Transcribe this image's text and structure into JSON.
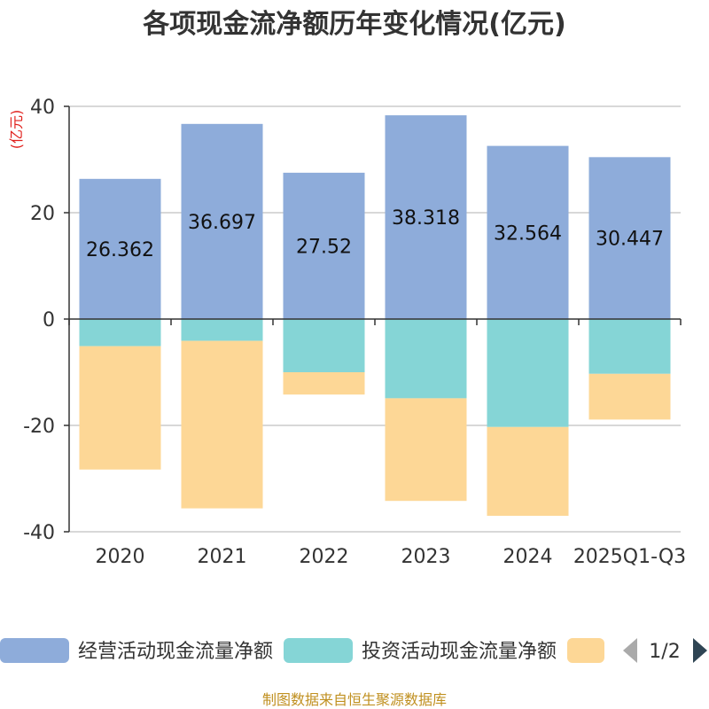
{
  "chart_data": {
    "type": "bar",
    "stacked": true,
    "title": "各项现金流净额历年变化情况(亿元)",
    "ylabel": "(亿元)",
    "categories": [
      "2020",
      "2021",
      "2022",
      "2023",
      "2024",
      "2025Q1-Q3"
    ],
    "ylim": [
      -40,
      40
    ],
    "yticks": [
      40,
      20,
      0,
      -20,
      -40
    ],
    "series": [
      {
        "name": "经营活动现金流量净额",
        "color": "#8eacda",
        "values": [
          26.362,
          36.697,
          27.52,
          38.318,
          32.564,
          30.447
        ],
        "labels": [
          "26.362",
          "36.697",
          "27.52",
          "38.318",
          "32.564",
          "30.447"
        ]
      },
      {
        "name": "投资活动现金流量净额",
        "color": "#85d5d6",
        "values": [
          -5.1,
          -4.1,
          -10.0,
          -14.9,
          -20.3,
          -10.3
        ]
      },
      {
        "name": "",
        "color": "#fdd796",
        "values": [
          -23.2,
          -31.5,
          -4.2,
          -19.3,
          -16.7,
          -8.6
        ]
      }
    ],
    "grid": true
  },
  "legend": {
    "items": [
      "经营活动现金流量净额",
      "投资活动现金流量净额"
    ],
    "page_indicator": "1/2"
  },
  "source": "制图数据来自恒生聚源数据库"
}
